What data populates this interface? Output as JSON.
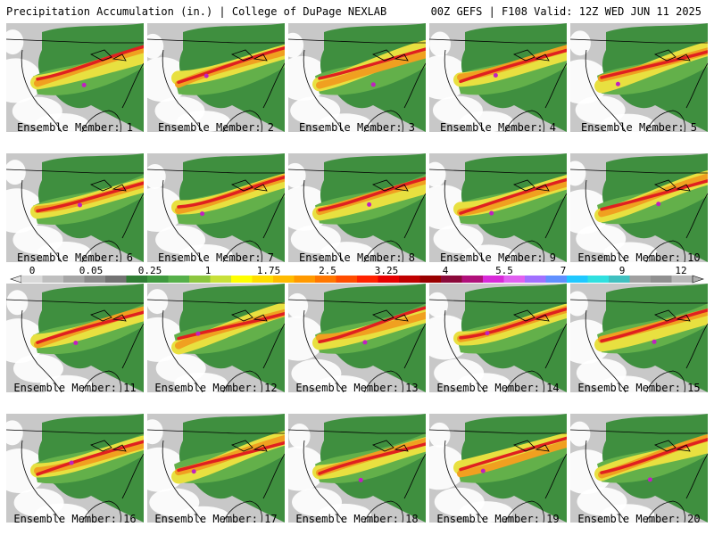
{
  "header": {
    "title": "Precipitation Accumulation (in.) | College of DuPage NEXLAB",
    "valid": "00Z GEFS | F108 Valid: 12Z WED JUN 11 2025"
  },
  "member_prefix": "Ensemble Member: ",
  "members": [
    {
      "number": 1,
      "label": "Ensemble Member: 1"
    },
    {
      "number": 2,
      "label": "Ensemble Member: 2"
    },
    {
      "number": 3,
      "label": "Ensemble Member: 3"
    },
    {
      "number": 4,
      "label": "Ensemble Member: 4"
    },
    {
      "number": 5,
      "label": "Ensemble Member: 5"
    },
    {
      "number": 6,
      "label": "Ensemble Member: 6"
    },
    {
      "number": 7,
      "label": "Ensemble Member: 7"
    },
    {
      "number": 8,
      "label": "Ensemble Member: 8"
    },
    {
      "number": 9,
      "label": "Ensemble Member: 9"
    },
    {
      "number": 10,
      "label": "Ensemble Member: 10"
    },
    {
      "number": 11,
      "label": "Ensemble Member: 11"
    },
    {
      "number": 12,
      "label": "Ensemble Member: 12"
    },
    {
      "number": 13,
      "label": "Ensemble Member: 13"
    },
    {
      "number": 14,
      "label": "Ensemble Member: 14"
    },
    {
      "number": 15,
      "label": "Ensemble Member: 15"
    },
    {
      "number": 16,
      "label": "Ensemble Member: 16"
    },
    {
      "number": 17,
      "label": "Ensemble Member: 17"
    },
    {
      "number": 18,
      "label": "Ensemble Member: 18"
    },
    {
      "number": 19,
      "label": "Ensemble Member: 19"
    },
    {
      "number": 20,
      "label": "Ensemble Member: 20"
    }
  ],
  "colorbar": {
    "tick_labels": [
      "0",
      "0.05",
      "0.25",
      "1",
      "1.75",
      "2.5",
      "3.25",
      "4",
      "5.5",
      "7",
      "9",
      "12"
    ],
    "colors": [
      "#d9d9d9",
      "#bfbfbf",
      "#a6a6a6",
      "#8c8c8c",
      "#737373",
      "#2f7d33",
      "#3f993f",
      "#56b04a",
      "#8cc63f",
      "#c8e03a",
      "#ffff00",
      "#ffdd00",
      "#ffbb00",
      "#ff9900",
      "#ff7700",
      "#ff4d00",
      "#ff2200",
      "#e60000",
      "#c00000",
      "#990000",
      "#8b0a3a",
      "#b0107a",
      "#d82ad8",
      "#e060f0",
      "#a070ff",
      "#6090ff",
      "#20c8ff",
      "#30e0e0",
      "#40c0c0",
      "#a0a0a0",
      "#909090",
      "#b8b8b8"
    ]
  },
  "map_colors": {
    "background": "#ffffff",
    "light": "#c8c8c8",
    "green": "#3f8f3f",
    "lightgreen": "#63b04a",
    "yellow": "#e8e040",
    "orange": "#f0a020",
    "red": "#e02020",
    "magenta": "#c020c0",
    "outline": "#000000"
  }
}
